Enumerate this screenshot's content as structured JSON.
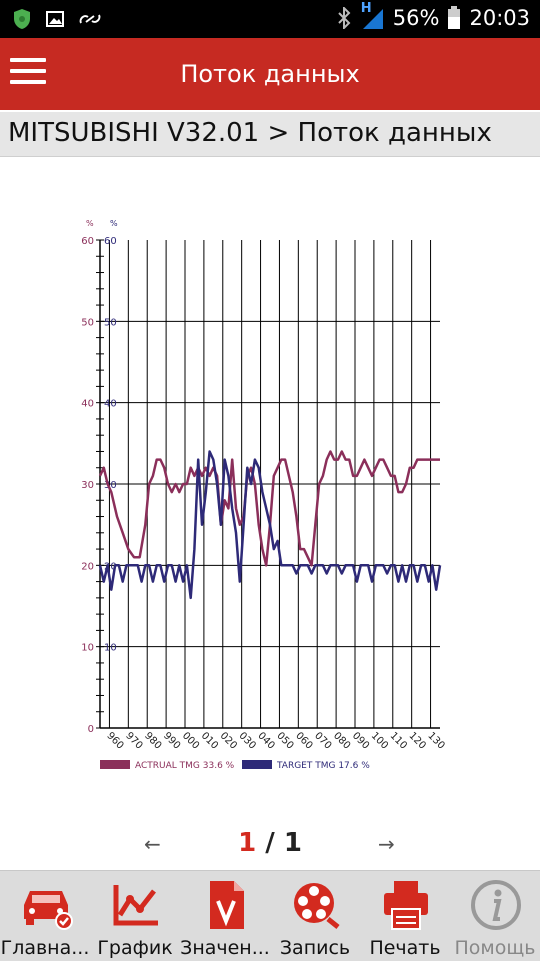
{
  "status_bar": {
    "battery": "56%",
    "time": "20:03",
    "network": "H"
  },
  "app_bar": {
    "title": "Поток данных"
  },
  "breadcrumb": {
    "text": "MITSUBISHI V32.01 > Поток данных"
  },
  "chart_data": {
    "type": "line",
    "y_axis_left": {
      "unit": "%",
      "ticks": [
        "0",
        "10",
        "20",
        "30",
        "40",
        "50",
        "60"
      ]
    },
    "y_axis_right": {
      "unit": "%",
      "ticks": [
        "10",
        "20",
        "30",
        "40",
        "50",
        "60"
      ]
    },
    "ylim": [
      0,
      60
    ],
    "xlim": [
      955,
      1135
    ],
    "x_ticks": [
      "960",
      "970",
      "980",
      "990",
      "000",
      "010",
      "020",
      "030",
      "040",
      "050",
      "060",
      "070",
      "080",
      "090",
      "100",
      "110",
      "120",
      "130"
    ],
    "x_tick_values": [
      960,
      970,
      980,
      990,
      1000,
      1010,
      1020,
      1030,
      1040,
      1050,
      1060,
      1070,
      1080,
      1090,
      1100,
      1110,
      1120,
      1130
    ],
    "series": [
      {
        "name": "ACTRUAL TMG 33.6 %",
        "color": "#8b2f5a",
        "x": [
          955,
          957,
          959,
          961,
          964,
          967,
          970,
          973,
          976,
          979,
          981,
          983,
          985,
          987,
          989,
          991,
          993,
          995,
          997,
          999,
          1001,
          1003,
          1005,
          1007,
          1009,
          1011,
          1013,
          1015,
          1017,
          1019,
          1021,
          1023,
          1025,
          1027,
          1029,
          1031,
          1033,
          1035,
          1037,
          1039,
          1041,
          1043,
          1045,
          1047,
          1049,
          1051,
          1053,
          1055,
          1057,
          1059,
          1061,
          1063,
          1065,
          1067,
          1069,
          1071,
          1073,
          1075,
          1077,
          1079,
          1081,
          1083,
          1085,
          1087,
          1089,
          1091,
          1093,
          1095,
          1097,
          1099,
          1101,
          1103,
          1105,
          1107,
          1109,
          1111,
          1113,
          1115,
          1117,
          1119,
          1121,
          1123,
          1125,
          1127,
          1129,
          1131,
          1133,
          1135
        ],
        "y": [
          31,
          32,
          30,
          29,
          26,
          24,
          22,
          21,
          21,
          25,
          30,
          31,
          33,
          33,
          32,
          30,
          29,
          30,
          29,
          30,
          30,
          32,
          31,
          32,
          31,
          32,
          31,
          32,
          31,
          25,
          28,
          27,
          33,
          27,
          25,
          26,
          31,
          32,
          30,
          25,
          22,
          20,
          25,
          31,
          32,
          33,
          33,
          31,
          29,
          26,
          22,
          22,
          21,
          20,
          25,
          30,
          31,
          33,
          34,
          33,
          33,
          34,
          33,
          33,
          31,
          31,
          32,
          33,
          32,
          31,
          32,
          33,
          33,
          32,
          31,
          31,
          29,
          29,
          30,
          32,
          32,
          33,
          33,
          33,
          33,
          33,
          33,
          33
        ]
      },
      {
        "name": "TARGET TMG 17.6 %",
        "color": "#2e2a78",
        "x": [
          955,
          957,
          959,
          961,
          963,
          965,
          967,
          969,
          971,
          973,
          975,
          977,
          979,
          981,
          983,
          985,
          987,
          989,
          991,
          993,
          995,
          997,
          999,
          1001,
          1003,
          1005,
          1007,
          1009,
          1011,
          1013,
          1015,
          1017,
          1019,
          1021,
          1023,
          1025,
          1027,
          1029,
          1031,
          1033,
          1035,
          1037,
          1039,
          1041,
          1043,
          1045,
          1047,
          1049,
          1051,
          1053,
          1055,
          1057,
          1059,
          1061,
          1063,
          1065,
          1067,
          1069,
          1071,
          1073,
          1075,
          1077,
          1079,
          1081,
          1083,
          1085,
          1087,
          1089,
          1091,
          1093,
          1095,
          1097,
          1099,
          1101,
          1103,
          1105,
          1107,
          1109,
          1111,
          1113,
          1115,
          1117,
          1119,
          1121,
          1123,
          1125,
          1127,
          1129,
          1131,
          1133,
          1135
        ],
        "y": [
          20,
          18,
          20,
          17,
          20,
          20,
          18,
          20,
          20,
          20,
          20,
          18,
          20,
          20,
          18,
          20,
          20,
          18,
          20,
          20,
          18,
          20,
          18,
          20,
          16,
          22,
          33,
          25,
          29,
          34,
          33,
          30,
          25,
          33,
          31,
          27,
          24,
          18,
          25,
          32,
          30,
          33,
          32,
          29,
          27,
          25,
          22,
          23,
          20,
          20,
          20,
          20,
          19,
          20,
          20,
          20,
          19,
          20,
          20,
          20,
          19,
          20,
          20,
          20,
          19,
          20,
          20,
          20,
          18,
          20,
          20,
          20,
          18,
          20,
          20,
          20,
          19,
          20,
          20,
          18,
          20,
          18,
          20,
          20,
          18,
          20,
          20,
          18,
          20,
          17,
          20
        ]
      }
    ]
  },
  "pager": {
    "current": "1",
    "separator": "/",
    "total": "1",
    "prev_icon": "arrow-left-icon",
    "next_icon": "arrow-right-icon"
  },
  "bottom_nav": {
    "items": [
      {
        "label": "Главна...",
        "icon": "car-check-icon"
      },
      {
        "label": "График",
        "icon": "graph-icon"
      },
      {
        "label": "Значен...",
        "icon": "document-v-icon"
      },
      {
        "label": "Запись",
        "icon": "film-reel-icon"
      },
      {
        "label": "Печать",
        "icon": "printer-icon"
      },
      {
        "label": "Помощь",
        "icon": "info-icon"
      }
    ]
  },
  "colors": {
    "accent": "#c62a22",
    "nav_bg": "#dcdcdc"
  }
}
